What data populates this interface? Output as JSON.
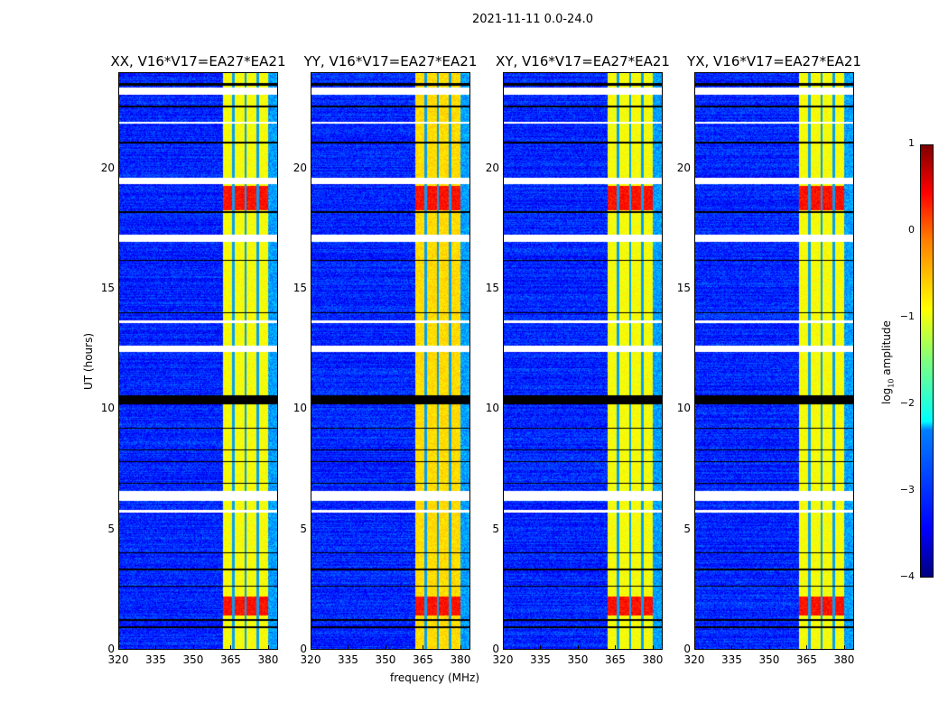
{
  "chart_data": {
    "type": "heatmap",
    "suptitle": "2021-11-11 0.0-24.0",
    "panels": [
      {
        "title": "XX, V16*V17=EA27*EA21"
      },
      {
        "title": "YY, V16*V17=EA27*EA21"
      },
      {
        "title": "XY, V16*V17=EA27*EA21"
      },
      {
        "title": "YX, V16*V17=EA27*EA21"
      }
    ],
    "xlabel": "frequency (MHz)",
    "ylabel": "UT (hours)",
    "xlim": [
      320,
      384
    ],
    "ylim": [
      0,
      24
    ],
    "xticks": [
      "320",
      "335",
      "350",
      "365",
      "380"
    ],
    "xtick_values": [
      320,
      335,
      350,
      365,
      380
    ],
    "yticks": [
      "0",
      "5",
      "10",
      "15",
      "20"
    ],
    "ytick_values": [
      0,
      5,
      10,
      15,
      20
    ],
    "colormap": "jet",
    "colorbar": {
      "label": "log10 amplitude",
      "label_main": "log",
      "label_sub": "10",
      "label_tail": " amplitude",
      "range": [
        -4,
        1
      ],
      "ticks": [
        "1",
        "0",
        "−1",
        "−2",
        "−3",
        "−4"
      ],
      "tick_values": [
        1,
        0,
        -1,
        -2,
        -3,
        -4
      ]
    },
    "background_level": -3.2,
    "rfi_band_mhz": [
      362,
      380
    ],
    "rfi_band_level": -0.9,
    "rfi_channel_gaps_mhz": [
      366,
      371,
      376
    ],
    "strong_rfi_hours": [
      [
        18.3,
        19.3
      ],
      [
        1.4,
        2.2
      ]
    ],
    "strong_rfi_level": 0.3,
    "flagged_white_hours": [
      [
        23.1,
        23.4
      ],
      [
        19.4,
        19.65
      ],
      [
        17.0,
        17.3
      ],
      [
        12.4,
        12.65
      ],
      [
        6.2,
        6.6
      ],
      [
        5.7,
        5.8
      ],
      [
        21.9,
        22.0
      ],
      [
        13.6,
        13.7
      ]
    ],
    "flagged_black_hours": [
      [
        10.2,
        10.6
      ],
      [
        23.5,
        23.6
      ],
      [
        22.6,
        22.65
      ],
      [
        21.1,
        21.15
      ],
      [
        18.2,
        18.25
      ],
      [
        16.2,
        16.25
      ],
      [
        14.0,
        14.05
      ],
      [
        9.2,
        9.25
      ],
      [
        8.3,
        8.35
      ],
      [
        7.8,
        7.85
      ],
      [
        6.9,
        6.95
      ],
      [
        4.0,
        4.05
      ],
      [
        3.3,
        3.35
      ],
      [
        2.6,
        2.65
      ],
      [
        1.2,
        1.25
      ],
      [
        0.9,
        0.95
      ]
    ]
  }
}
